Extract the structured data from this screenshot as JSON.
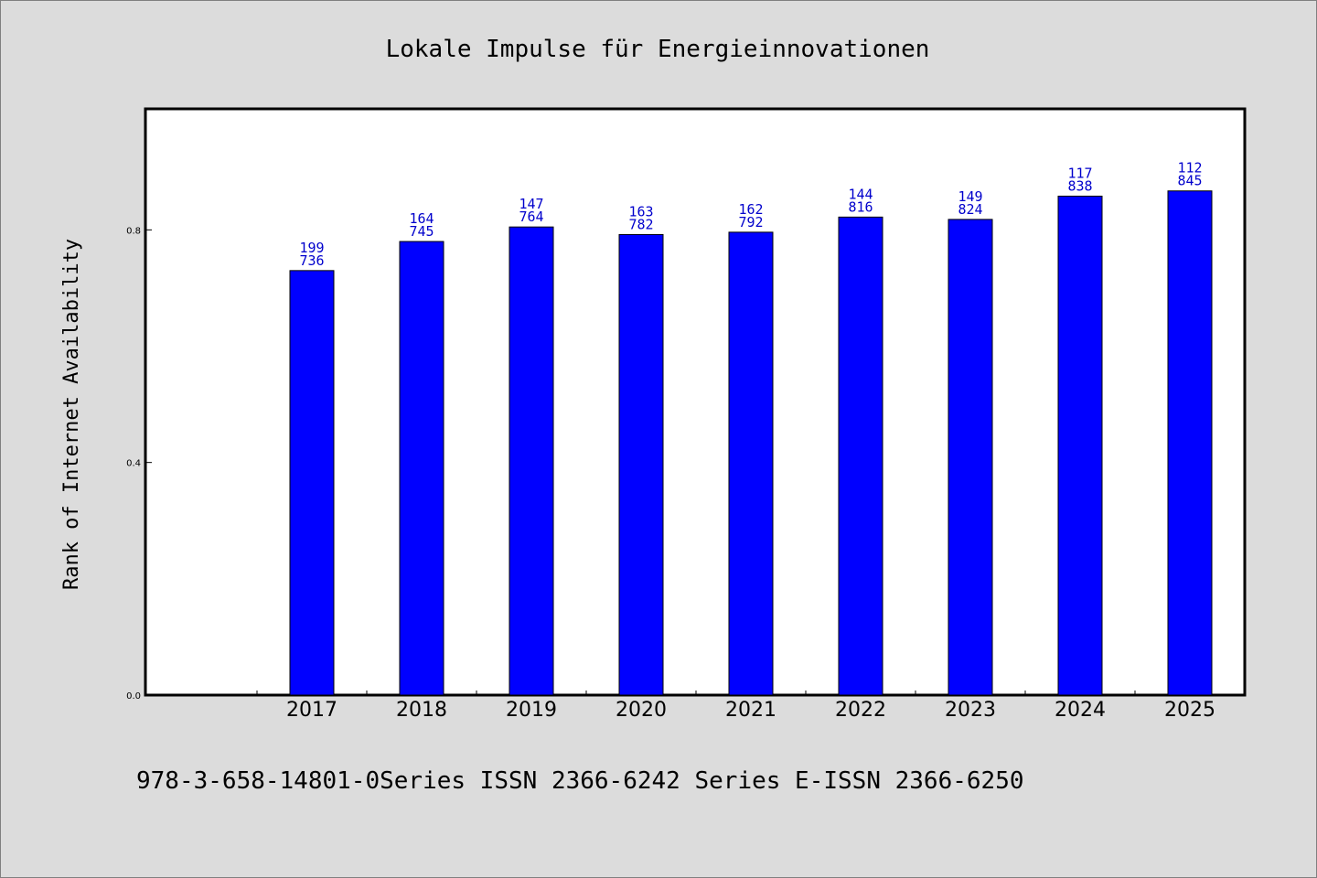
{
  "chart_data": {
    "type": "bar",
    "title": "Lokale Impulse für Energieinnovationen",
    "xlabel": "",
    "ylabel": "Rank of Internet Availability",
    "categories": [
      "2017",
      "2018",
      "2019",
      "2020",
      "2021",
      "2022",
      "2023",
      "2024",
      "2025"
    ],
    "values": [
      0.73,
      0.78,
      0.805,
      0.792,
      0.796,
      0.822,
      0.818,
      0.858,
      0.867
    ],
    "data_labels": [
      [
        "199",
        "736"
      ],
      [
        "164",
        "745"
      ],
      [
        "147",
        "764"
      ],
      [
        "163",
        "782"
      ],
      [
        "162",
        "792"
      ],
      [
        "144",
        "816"
      ],
      [
        "149",
        "824"
      ],
      [
        "117",
        "838"
      ],
      [
        "112",
        "845"
      ]
    ],
    "ylim": [
      0,
      1.005
    ],
    "yticks": [
      0.0,
      0.4,
      0.8
    ],
    "ytick_labels": [
      "0.0",
      "0.4",
      "0.8"
    ],
    "grid": false,
    "legend": "none",
    "bar_color": "#0000ff",
    "label_color": "#0000cc",
    "footnote": "978-3-658-14801-0Series ISSN 2366-6242 Series E-ISSN 2366-6250"
  }
}
